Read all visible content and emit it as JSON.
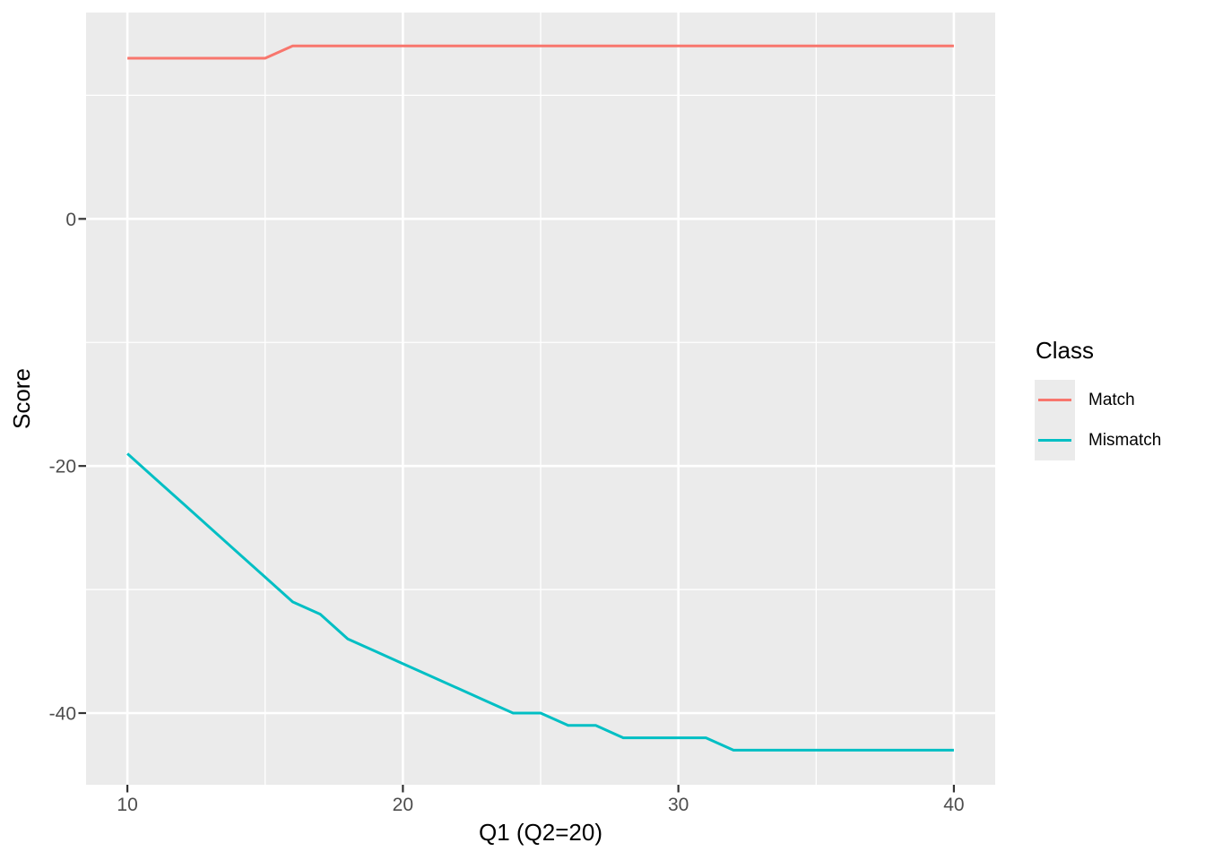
{
  "chart_data": {
    "type": "line",
    "title": "",
    "xlabel": "Q1 (Q2=20)",
    "ylabel": "Score",
    "legend_title": "Class",
    "legend_position": "right",
    "x": [
      10,
      11,
      12,
      13,
      14,
      15,
      16,
      17,
      18,
      19,
      20,
      21,
      22,
      23,
      24,
      25,
      26,
      27,
      28,
      29,
      30,
      31,
      32,
      33,
      34,
      35,
      36,
      37,
      38,
      39,
      40
    ],
    "series": [
      {
        "name": "Match",
        "color": "#F8766D",
        "values": [
          13,
          13,
          13,
          13,
          13,
          13,
          14,
          14,
          14,
          14,
          14,
          14,
          14,
          14,
          14,
          14,
          14,
          14,
          14,
          14,
          14,
          14,
          14,
          14,
          14,
          14,
          14,
          14,
          14,
          14,
          14
        ]
      },
      {
        "name": "Mismatch",
        "color": "#00BFC4",
        "values": [
          -19,
          -21,
          -23,
          -25,
          -27,
          -29,
          -31,
          -32,
          -34,
          -35,
          -36,
          -37,
          -38,
          -39,
          -40,
          -40,
          -41,
          -41,
          -42,
          -42,
          -42,
          -42,
          -43,
          -43,
          -43,
          -43,
          -43,
          -43,
          -43,
          -43,
          -43
        ]
      }
    ],
    "xlim": [
      8.5,
      41.5
    ],
    "ylim": [
      -45.8,
      16.7
    ],
    "xticks": [
      10,
      20,
      30,
      40
    ],
    "yticks": [
      0,
      -20,
      -40
    ],
    "xminor": [
      15,
      25,
      35
    ],
    "yminor": [
      10,
      -10,
      -30
    ],
    "grid": true,
    "colors": {
      "figure_bg": "#FFFFFF",
      "panel_bg": "#EBEBEB",
      "grid": "#FFFFFF",
      "tick_mark": "#333333",
      "tick_label": "#4D4D4D",
      "axis_title": "#000000",
      "legend_key_bg": "#EBEBEB"
    }
  }
}
